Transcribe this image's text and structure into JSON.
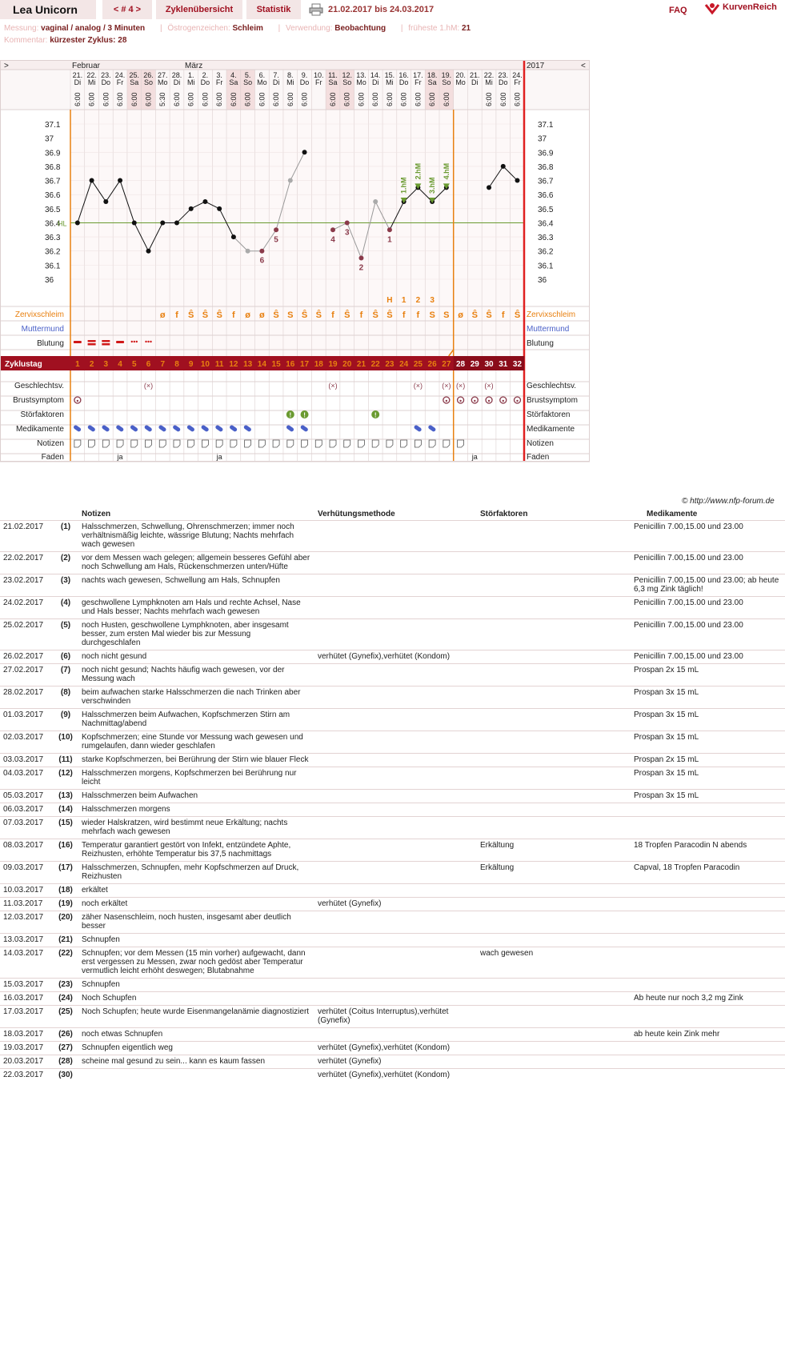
{
  "topbar": {
    "user": "Lea Unicorn",
    "cycle_nav": "< # 4 >",
    "tab_cycles": "Zyklenübersicht",
    "tab_stats": "Statistik",
    "range": "21.02.2017 bis 24.03.2017",
    "faq": "FAQ",
    "logo": "KurvenReich"
  },
  "info": {
    "messung_label": "Messung:",
    "messung_value": "vaginal / analog / 3 Minuten",
    "oestrogen_label": "Östrogenzeichen:",
    "oestrogen_value": "Schleim",
    "verwendung_label": "Verwendung:",
    "verwendung_value": "Beobachtung",
    "frueheste_label": "früheste 1.hM:",
    "frueheste_value": "21",
    "kommentar_label": "Kommentar:",
    "kommentar_value": "kürzester Zyklus: 28"
  },
  "chart": {
    "nav_prev": ">",
    "nav_next": "<",
    "month1": "Februar",
    "month2": "März",
    "year": "2017",
    "dates": [
      "21.",
      "22.",
      "23.",
      "24.",
      "25.",
      "26.",
      "27.",
      "28.",
      "1.",
      "2.",
      "3.",
      "4.",
      "5.",
      "6.",
      "7.",
      "8.",
      "9.",
      "10.",
      "11.",
      "12.",
      "13.",
      "14.",
      "15.",
      "16.",
      "17.",
      "18.",
      "19.",
      "20.",
      "21.",
      "22.",
      "23.",
      "24."
    ],
    "weekdays": [
      "Di",
      "Mi",
      "Do",
      "Fr",
      "Sa",
      "So",
      "Mo",
      "Di",
      "Mi",
      "Do",
      "Fr",
      "Sa",
      "So",
      "Mo",
      "Di",
      "Mi",
      "Do",
      "Fr",
      "Sa",
      "So",
      "Mo",
      "Di",
      "Mi",
      "Do",
      "Fr",
      "Sa",
      "So",
      "Mo",
      "Di",
      "Mi",
      "Do",
      "Fr"
    ],
    "times": [
      "6:00",
      "6:00",
      "6:00",
      "6:00",
      "6:00",
      "6:00",
      "5:30",
      "6:00",
      "6:00",
      "6:00",
      "6:00",
      "6:00",
      "6:00",
      "6:00",
      "6:00",
      "6:00",
      "6:00",
      "",
      "6:00",
      "6:00",
      "6:00",
      "6:00",
      "6:00",
      "6:00",
      "6:00",
      "6:00",
      "6:00",
      "",
      "",
      "6:00",
      "6:00",
      "6:00"
    ],
    "weekend_cols": [
      4,
      5,
      11,
      12,
      18,
      19,
      25,
      26
    ],
    "y_ticks": [
      "37.1",
      "37",
      "36.9",
      "36.8",
      "36.7",
      "36.6",
      "36.5",
      "36.4",
      "36.3",
      "36.2",
      "36.1",
      "36"
    ],
    "hl_label": "HL",
    "cover_line": 36.4,
    "temps": [
      36.4,
      36.7,
      36.55,
      36.7,
      36.4,
      36.2,
      36.4,
      36.4,
      36.5,
      36.55,
      36.5,
      36.3,
      36.2,
      36.2,
      36.35,
      36.7,
      36.9,
      null,
      36.35,
      36.4,
      36.15,
      36.55,
      36.35,
      36.55,
      36.65,
      36.55,
      36.65,
      null,
      null,
      36.65,
      36.8,
      36.7
    ],
    "excluded_days": [
      13,
      14,
      15,
      16,
      18,
      19,
      20,
      21,
      22
    ],
    "low_counts": [
      {
        "day": 14,
        "label": "6"
      },
      {
        "day": 15,
        "label": "5"
      },
      {
        "day": 19,
        "label": "4"
      },
      {
        "day": 20,
        "label": "3"
      },
      {
        "day": 21,
        "label": "2"
      },
      {
        "day": 23,
        "label": "1"
      }
    ],
    "high_marks": [
      {
        "day": 24,
        "label": "1.hM"
      },
      {
        "day": 25,
        "label": "2.hM"
      },
      {
        "day": 26,
        "label": "3.hM"
      },
      {
        "day": 27,
        "label": "4.hM"
      }
    ],
    "peak_marks": [
      {
        "day": 23,
        "label": "H"
      },
      {
        "day": 24,
        "label": "1"
      },
      {
        "day": 25,
        "label": "2"
      },
      {
        "day": 26,
        "label": "3"
      }
    ],
    "zervix_label": "Zervixschleim",
    "zervix": [
      "",
      "",
      "",
      "",
      "",
      "",
      "ø",
      "f",
      "Ŝ",
      "Ŝ",
      "Ŝ",
      "f",
      "ø",
      "ø",
      "Ŝ",
      "S",
      "Ŝ",
      "Ŝ",
      "f",
      "Ŝ",
      "f",
      "Ŝ",
      "Ŝ",
      "f",
      "f",
      "S",
      "S",
      "ø",
      "Ŝ",
      "Ŝ",
      "f",
      "Ŝ"
    ],
    "muttermund_label": "Muttermund",
    "blutung_label": "Blutung",
    "blutung": [
      1,
      2,
      2,
      1,
      3,
      3
    ],
    "zyklustag_label": "Zyklustag",
    "zyklustag": [
      "1",
      "2",
      "3",
      "4",
      "5",
      "6",
      "7",
      "8",
      "9",
      "10",
      "11",
      "12",
      "13",
      "14",
      "15",
      "16",
      "17",
      "18",
      "19",
      "20",
      "21",
      "22",
      "23",
      "24",
      "25",
      "26",
      "27",
      "28",
      "29",
      "30",
      "31",
      "32"
    ],
    "gv_label": "Geschlechtsv.",
    "gv": [
      6,
      19,
      25,
      27,
      28,
      30
    ],
    "gv_symbol": "(×)",
    "brust_label": "Brustsymptom",
    "brust": [
      1,
      27,
      28,
      29,
      30,
      31,
      32
    ],
    "stoer_label": "Störfaktoren",
    "stoer": [
      16,
      17,
      22
    ],
    "medi_label": "Medikamente",
    "medi": [
      1,
      2,
      3,
      4,
      5,
      6,
      7,
      8,
      9,
      10,
      11,
      12,
      13,
      16,
      17,
      25,
      26
    ],
    "notiz_label": "Notizen",
    "notiz_days": 32,
    "faden_label": "Faden",
    "faden": [
      {
        "day": 4,
        "label": "ja"
      },
      {
        "day": 11,
        "label": "ja"
      },
      {
        "day": 29,
        "label": "ja"
      }
    ],
    "colors": {
      "orange": "#e88010",
      "cycle_bar": "#a01020",
      "red_line": "#e02020",
      "blue": "#4a60c8",
      "green": "#6a9a30"
    }
  },
  "credit": "© http://www.nfp-forum.de",
  "notes": {
    "headers": {
      "notes": "Notizen",
      "method": "Verhütungsmethode",
      "stoer": "Störfaktoren",
      "medi": "Medikamente"
    },
    "rows": [
      {
        "date": "21.02.2017",
        "day": "(1)",
        "note": "Halsschmerzen, Schwellung, Ohrenschmerzen; immer noch verhältnismäßig leichte, wässrige Blutung; Nachts mehrfach wach gewesen",
        "method": "",
        "stoer": "",
        "medi": "Penicillin 7.00,15.00 und 23.00"
      },
      {
        "date": "22.02.2017",
        "day": "(2)",
        "note": "vor dem Messen wach gelegen; allgemein besseres Gefühl aber noch Schwellung am Hals, Rückenschmerzen unten/Hüfte",
        "method": "",
        "stoer": "",
        "medi": "Penicillin 7.00,15.00 und 23.00"
      },
      {
        "date": "23.02.2017",
        "day": "(3)",
        "note": "nachts wach gewesen, Schwellung am Hals, Schnupfen",
        "method": "",
        "stoer": "",
        "medi": "Penicillin 7.00,15.00 und 23.00; ab heute 6,3 mg Zink täglich!"
      },
      {
        "date": "24.02.2017",
        "day": "(4)",
        "note": "geschwollene Lymphknoten am Hals und rechte Achsel, Nase und Hals besser; Nachts mehrfach wach gewesen",
        "method": "",
        "stoer": "",
        "medi": "Penicillin 7.00,15.00 und 23.00"
      },
      {
        "date": "25.02.2017",
        "day": "(5)",
        "note": "noch Husten, geschwollene Lymphknoten, aber insgesamt besser, zum ersten Mal wieder bis zur Messung durchgeschlafen",
        "method": "",
        "stoer": "",
        "medi": "Penicillin 7.00,15.00 und 23.00"
      },
      {
        "date": "26.02.2017",
        "day": "(6)",
        "note": "noch nicht gesund",
        "method": "verhütet (Gynefix),verhütet (Kondom)",
        "stoer": "",
        "medi": "Penicillin 7.00,15.00 und 23.00"
      },
      {
        "date": "27.02.2017",
        "day": "(7)",
        "note": "noch nicht gesund; Nachts häufig wach gewesen, vor der Messung wach",
        "method": "",
        "stoer": "",
        "medi": "Prospan 2x 15 mL"
      },
      {
        "date": "28.02.2017",
        "day": "(8)",
        "note": "beim aufwachen starke Halsschmerzen die nach Trinken aber verschwinden",
        "method": "",
        "stoer": "",
        "medi": "Prospan 3x 15 mL"
      },
      {
        "date": "01.03.2017",
        "day": "(9)",
        "note": "Halsschmerzen beim Aufwachen, Kopfschmerzen Stirn am Nachmittag/abend",
        "method": "",
        "stoer": "",
        "medi": "Prospan 3x 15 mL"
      },
      {
        "date": "02.03.2017",
        "day": "(10)",
        "note": "Kopfschmerzen; eine Stunde vor Messung wach gewesen und rumgelaufen, dann wieder geschlafen",
        "method": "",
        "stoer": "",
        "medi": "Prospan 3x 15 mL"
      },
      {
        "date": "03.03.2017",
        "day": "(11)",
        "note": "starke Kopfschmerzen, bei Berührung der Stirn wie blauer Fleck",
        "method": "",
        "stoer": "",
        "medi": "Prospan 2x 15 mL"
      },
      {
        "date": "04.03.2017",
        "day": "(12)",
        "note": "Halsschmerzen morgens, Kopfschmerzen bei Berührung nur leicht",
        "method": "",
        "stoer": "",
        "medi": "Prospan 3x 15 mL"
      },
      {
        "date": "05.03.2017",
        "day": "(13)",
        "note": "Halsschmerzen beim Aufwachen",
        "method": "",
        "stoer": "",
        "medi": "Prospan 3x 15 mL"
      },
      {
        "date": "06.03.2017",
        "day": "(14)",
        "note": "Halsschmerzen morgens",
        "method": "",
        "stoer": "",
        "medi": ""
      },
      {
        "date": "07.03.2017",
        "day": "(15)",
        "note": "wieder Halskratzen, wird bestimmt neue Erkältung; nachts mehrfach wach gewesen",
        "method": "",
        "stoer": "",
        "medi": ""
      },
      {
        "date": "08.03.2017",
        "day": "(16)",
        "note": "Temperatur garantiert gestört von Infekt, entzündete Aphte, Reizhusten, erhöhte Temperatur bis 37,5 nachmittags",
        "method": "",
        "stoer": "Erkältung",
        "medi": "18 Tropfen Paracodin N abends"
      },
      {
        "date": "09.03.2017",
        "day": "(17)",
        "note": "Halsschmerzen, Schnupfen, mehr Kopfschmerzen auf Druck, Reizhusten",
        "method": "",
        "stoer": "Erkältung",
        "medi": "Capval, 18 Tropfen Paracodin"
      },
      {
        "date": "10.03.2017",
        "day": "(18)",
        "note": "erkältet",
        "method": "",
        "stoer": "",
        "medi": ""
      },
      {
        "date": "11.03.2017",
        "day": "(19)",
        "note": "noch erkältet",
        "method": "verhütet (Gynefix)",
        "stoer": "",
        "medi": ""
      },
      {
        "date": "12.03.2017",
        "day": "(20)",
        "note": "zäher Nasenschleim, noch husten, insgesamt aber deutlich besser",
        "method": "",
        "stoer": "",
        "medi": ""
      },
      {
        "date": "13.03.2017",
        "day": "(21)",
        "note": "Schnupfen",
        "method": "",
        "stoer": "",
        "medi": ""
      },
      {
        "date": "14.03.2017",
        "day": "(22)",
        "note": "Schnupfen; vor dem Messen (15 min vorher) aufgewacht, dann erst vergessen zu Messen, zwar noch gedöst aber Temperatur vermutlich leicht erhöht deswegen; Blutabnahme",
        "method": "",
        "stoer": "wach gewesen",
        "medi": ""
      },
      {
        "date": "15.03.2017",
        "day": "(23)",
        "note": "Schnupfen",
        "method": "",
        "stoer": "",
        "medi": ""
      },
      {
        "date": "16.03.2017",
        "day": "(24)",
        "note": "Noch Schupfen",
        "method": "",
        "stoer": "",
        "medi": "Ab heute nur noch 3,2 mg Zink"
      },
      {
        "date": "17.03.2017",
        "day": "(25)",
        "note": "Noch Schupfen; heute wurde Eisenmangelanämie diagnostiziert",
        "method": "verhütet (Coitus Interruptus),verhütet (Gynefix)",
        "stoer": "",
        "medi": ""
      },
      {
        "date": "18.03.2017",
        "day": "(26)",
        "note": "noch etwas Schnupfen",
        "method": "",
        "stoer": "",
        "medi": "ab heute kein Zink mehr"
      },
      {
        "date": "19.03.2017",
        "day": "(27)",
        "note": "Schnupfen eigentlich weg",
        "method": "verhütet (Gynefix),verhütet (Kondom)",
        "stoer": "",
        "medi": ""
      },
      {
        "date": "20.03.2017",
        "day": "(28)",
        "note": "scheine mal gesund zu sein... kann es kaum fassen",
        "method": "verhütet (Gynefix)",
        "stoer": "",
        "medi": ""
      },
      {
        "date": "22.03.2017",
        "day": "(30)",
        "note": "",
        "method": "verhütet (Gynefix),verhütet (Kondom)",
        "stoer": "",
        "medi": ""
      }
    ]
  }
}
